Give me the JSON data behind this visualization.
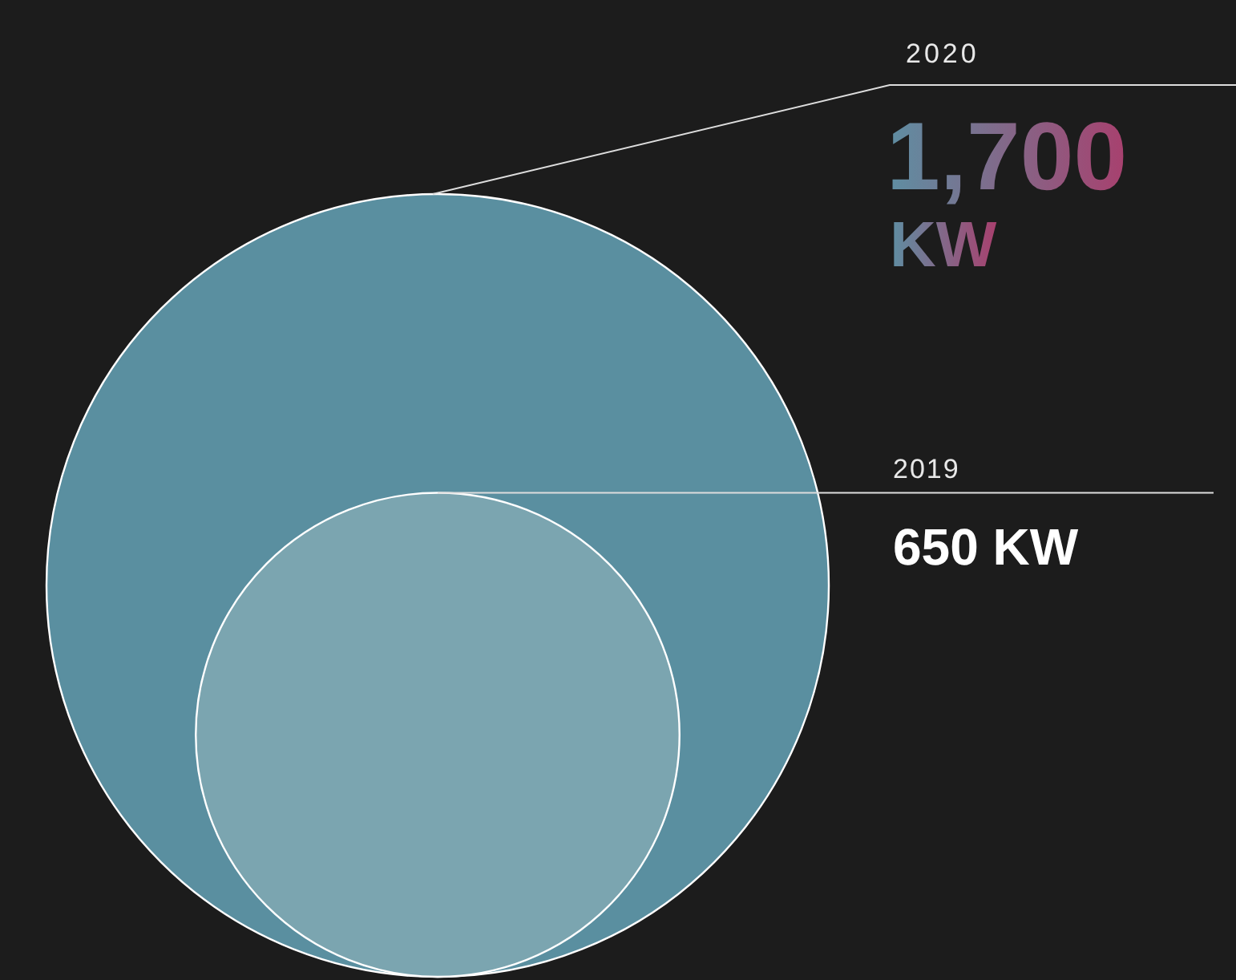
{
  "chart_data": {
    "type": "other",
    "categories": [
      "2020",
      "2019"
    ],
    "values": [
      1700,
      650
    ],
    "value_labels": [
      "1,700 KW",
      "650 KW"
    ],
    "colors": [
      "#5a8fa0",
      "#7ba5b0"
    ]
  }
}
